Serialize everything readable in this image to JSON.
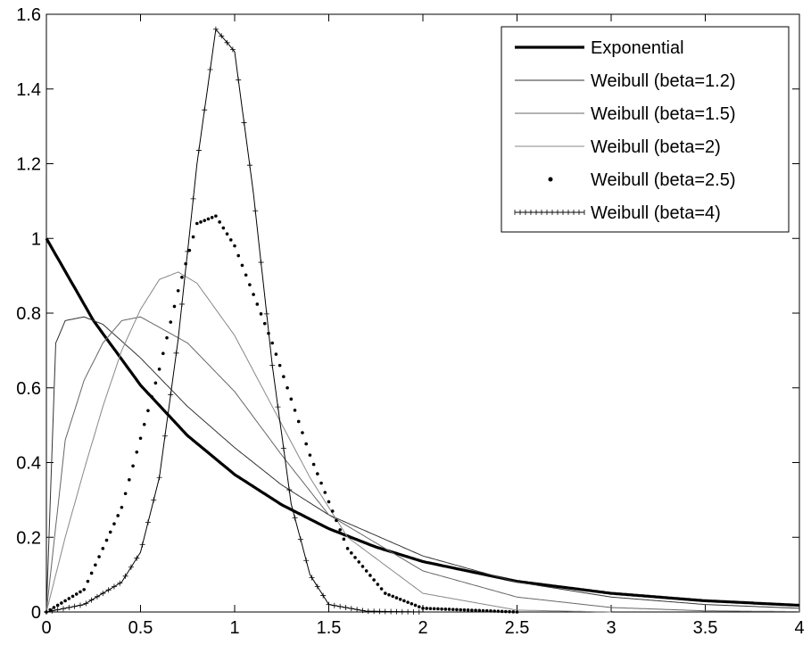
{
  "chart_data": {
    "type": "line",
    "title": "",
    "xlabel": "",
    "ylabel": "",
    "xlim": [
      0,
      4
    ],
    "ylim": [
      0,
      1.6
    ],
    "xticks": [
      "0",
      "0.5",
      "1",
      "1.5",
      "2",
      "2.5",
      "3",
      "3.5",
      "4"
    ],
    "yticks": [
      "0",
      "0.2",
      "0.4",
      "0.6",
      "0.8",
      "1",
      "1.2",
      "1.4",
      "1.6"
    ],
    "grid": false,
    "legend_position": "top-right",
    "series": [
      {
        "name": "Exponential",
        "style": "thick-solid",
        "color": "#000000",
        "x": [
          0,
          0.25,
          0.5,
          0.75,
          1,
          1.25,
          1.5,
          1.75,
          2,
          2.5,
          3,
          3.5,
          4
        ],
        "y": [
          1,
          0.78,
          0.607,
          0.472,
          0.368,
          0.287,
          0.223,
          0.174,
          0.135,
          0.082,
          0.05,
          0.03,
          0.018
        ]
      },
      {
        "name": "Weibull (beta=1.2)",
        "style": "thin-solid",
        "color": "#333333",
        "x": [
          0,
          0.05,
          0.1,
          0.2,
          0.3,
          0.5,
          0.75,
          1,
          1.25,
          1.5,
          2,
          2.5,
          3,
          3.5,
          4
        ],
        "y": [
          0,
          0.72,
          0.78,
          0.79,
          0.77,
          0.68,
          0.55,
          0.44,
          0.34,
          0.26,
          0.15,
          0.08,
          0.04,
          0.02,
          0.01
        ]
      },
      {
        "name": "Weibull (beta=1.5)",
        "style": "thin-solid",
        "color": "#666666",
        "x": [
          0,
          0.1,
          0.2,
          0.3,
          0.4,
          0.5,
          0.75,
          1,
          1.25,
          1.5,
          2,
          2.5,
          3,
          3.5,
          4
        ],
        "y": [
          0,
          0.46,
          0.62,
          0.72,
          0.78,
          0.79,
          0.72,
          0.59,
          0.42,
          0.26,
          0.11,
          0.04,
          0.012,
          0.003,
          0.001
        ]
      },
      {
        "name": "Weibull (beta=2)",
        "style": "thin-solid",
        "color": "#888888",
        "x": [
          0,
          0.1,
          0.2,
          0.3,
          0.4,
          0.5,
          0.6,
          0.7,
          0.8,
          1,
          1.2,
          1.4,
          1.6,
          2,
          2.5,
          3
        ],
        "y": [
          0,
          0.2,
          0.38,
          0.55,
          0.7,
          0.81,
          0.89,
          0.91,
          0.88,
          0.74,
          0.55,
          0.36,
          0.2,
          0.05,
          0.005,
          0
        ]
      },
      {
        "name": "Weibull (beta=2.5)",
        "style": "dots",
        "color": "#000000",
        "x": [
          0,
          0.2,
          0.4,
          0.6,
          0.7,
          0.8,
          0.9,
          1,
          1.2,
          1.4,
          1.6,
          1.8,
          2,
          2.5
        ],
        "y": [
          0,
          0.06,
          0.28,
          0.65,
          0.86,
          1.04,
          1.06,
          0.98,
          0.72,
          0.42,
          0.17,
          0.05,
          0.01,
          0
        ]
      },
      {
        "name": "Weibull (beta=4)",
        "style": "plus-markers",
        "color": "#000000",
        "x": [
          0,
          0.2,
          0.4,
          0.5,
          0.6,
          0.7,
          0.8,
          0.9,
          1,
          1.1,
          1.2,
          1.3,
          1.4,
          1.5,
          1.7,
          2
        ],
        "y": [
          0,
          0.02,
          0.08,
          0.16,
          0.36,
          0.73,
          1.2,
          1.56,
          1.5,
          1.12,
          0.66,
          0.29,
          0.1,
          0.02,
          0.002,
          0
        ]
      }
    ]
  }
}
